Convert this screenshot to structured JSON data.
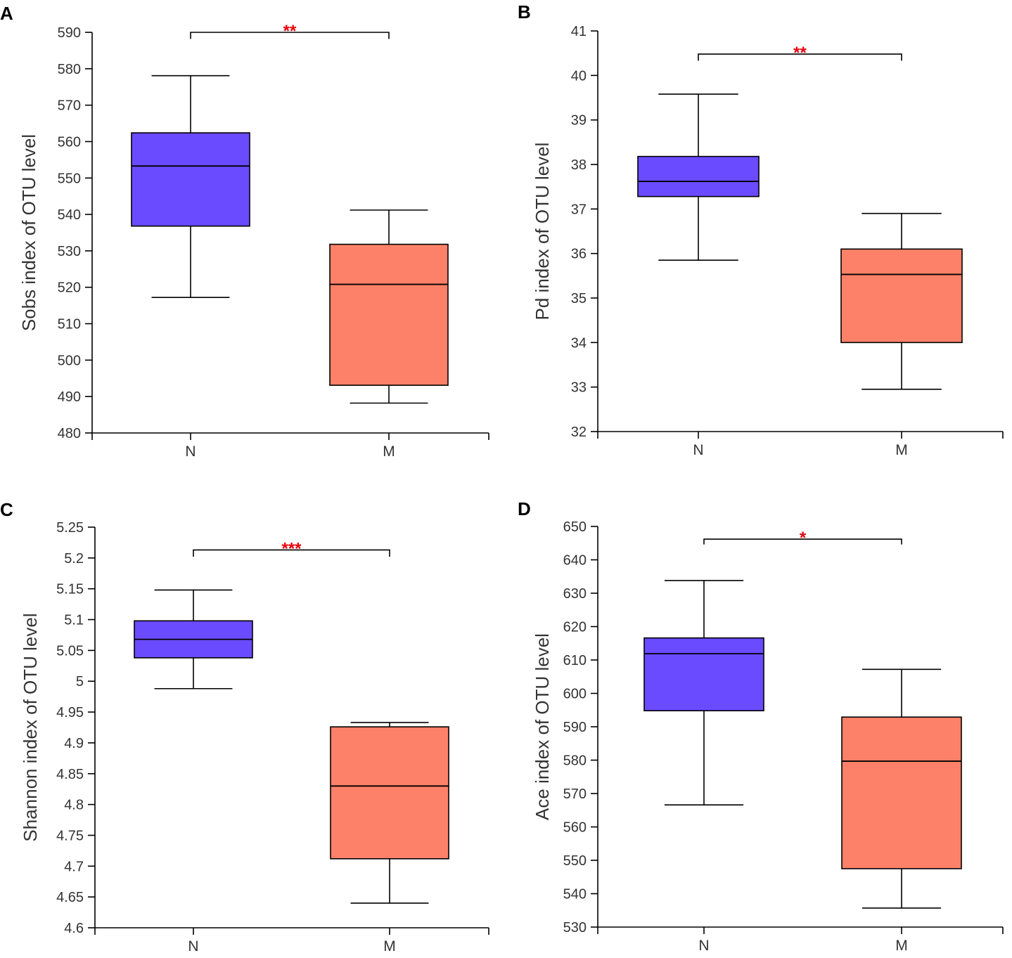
{
  "chart_data": [
    {
      "type": "box",
      "panel": "A",
      "ylabel": "Sobs index of OTU level",
      "ylim": [
        480,
        590
      ],
      "yticks": [
        480,
        490,
        500,
        510,
        520,
        530,
        540,
        550,
        560,
        570,
        580,
        590
      ],
      "ytick_labels": [
        "480",
        "490",
        "500",
        "510",
        "520",
        "530",
        "540",
        "550",
        "560",
        "570",
        "580",
        "590"
      ],
      "categories": [
        "N",
        "M"
      ],
      "boxes": [
        {
          "group": "N",
          "whisker_low": 517.2,
          "q1": 536.8,
          "median": 553.3,
          "q3": 562.4,
          "whisker_high": 578.1,
          "color": "#6a4bff"
        },
        {
          "group": "M",
          "whisker_low": 488.2,
          "q1": 493.1,
          "median": 520.8,
          "q3": 531.8,
          "whisker_high": 541.2,
          "color": "#fd8169"
        }
      ],
      "significance": {
        "label": "**",
        "level": 590,
        "tick_end": 588.2,
        "color": "#e8000b"
      }
    },
    {
      "type": "box",
      "panel": "B",
      "ylabel": "Pd index of OTU level",
      "ylim": [
        32,
        41
      ],
      "yticks": [
        32,
        33,
        34,
        35,
        36,
        37,
        38,
        39,
        40,
        41
      ],
      "ytick_labels": [
        "32",
        "33",
        "34",
        "35",
        "36",
        "37",
        "38",
        "39",
        "40",
        "41"
      ],
      "categories": [
        "N",
        "M"
      ],
      "boxes": [
        {
          "group": "N",
          "whisker_low": 35.85,
          "q1": 37.28,
          "median": 37.62,
          "q3": 38.18,
          "whisker_high": 39.58,
          "color": "#6a4bff"
        },
        {
          "group": "M",
          "whisker_low": 32.95,
          "q1": 34.0,
          "median": 35.53,
          "q3": 36.1,
          "whisker_high": 36.9,
          "color": "#fd8169"
        }
      ],
      "significance": {
        "label": "**",
        "level": 40.48,
        "tick_end": 40.33,
        "color": "#e8000b"
      }
    },
    {
      "type": "box",
      "panel": "C",
      "ylabel": "Shannon index of OTU level",
      "ylim": [
        4.6,
        5.25
      ],
      "yticks": [
        4.6,
        4.65,
        4.7,
        4.75,
        4.8,
        4.85,
        4.9,
        4.95,
        5.0,
        5.05,
        5.1,
        5.15,
        5.2,
        5.25
      ],
      "ytick_labels": [
        "4.6",
        "4.65",
        "4.7",
        "4.75",
        "4.8",
        "4.85",
        "4.9",
        "4.95",
        "5",
        "5.05",
        "5.1",
        "5.15",
        "5.2",
        "5.25"
      ],
      "categories": [
        "N",
        "M"
      ],
      "boxes": [
        {
          "group": "N",
          "whisker_low": 4.988,
          "q1": 5.038,
          "median": 5.068,
          "q3": 5.098,
          "whisker_high": 5.148,
          "color": "#6a4bff"
        },
        {
          "group": "M",
          "whisker_low": 4.64,
          "q1": 4.712,
          "median": 4.83,
          "q3": 4.926,
          "whisker_high": 4.933,
          "color": "#fd8169"
        }
      ],
      "significance": {
        "label": "***",
        "level": 5.213,
        "tick_end": 5.202,
        "color": "#e8000b"
      }
    },
    {
      "type": "box",
      "panel": "D",
      "ylabel": "Ace index of OTU level",
      "ylim": [
        530,
        650
      ],
      "yticks": [
        530,
        540,
        550,
        560,
        570,
        580,
        590,
        600,
        610,
        620,
        630,
        640,
        650
      ],
      "ytick_labels": [
        "530",
        "540",
        "550",
        "560",
        "570",
        "580",
        "590",
        "600",
        "610",
        "620",
        "630",
        "640",
        "650"
      ],
      "categories": [
        "N",
        "M"
      ],
      "boxes": [
        {
          "group": "N",
          "whisker_low": 566.6,
          "q1": 594.8,
          "median": 611.9,
          "q3": 616.6,
          "whisker_high": 633.8,
          "color": "#6a4bff"
        },
        {
          "group": "M",
          "whisker_low": 535.7,
          "q1": 547.5,
          "median": 579.7,
          "q3": 592.9,
          "whisker_high": 607.2,
          "color": "#fd8169"
        }
      ],
      "significance": {
        "label": "*",
        "level": 646.2,
        "tick_end": 644.6,
        "color": "#e8000b"
      }
    }
  ]
}
